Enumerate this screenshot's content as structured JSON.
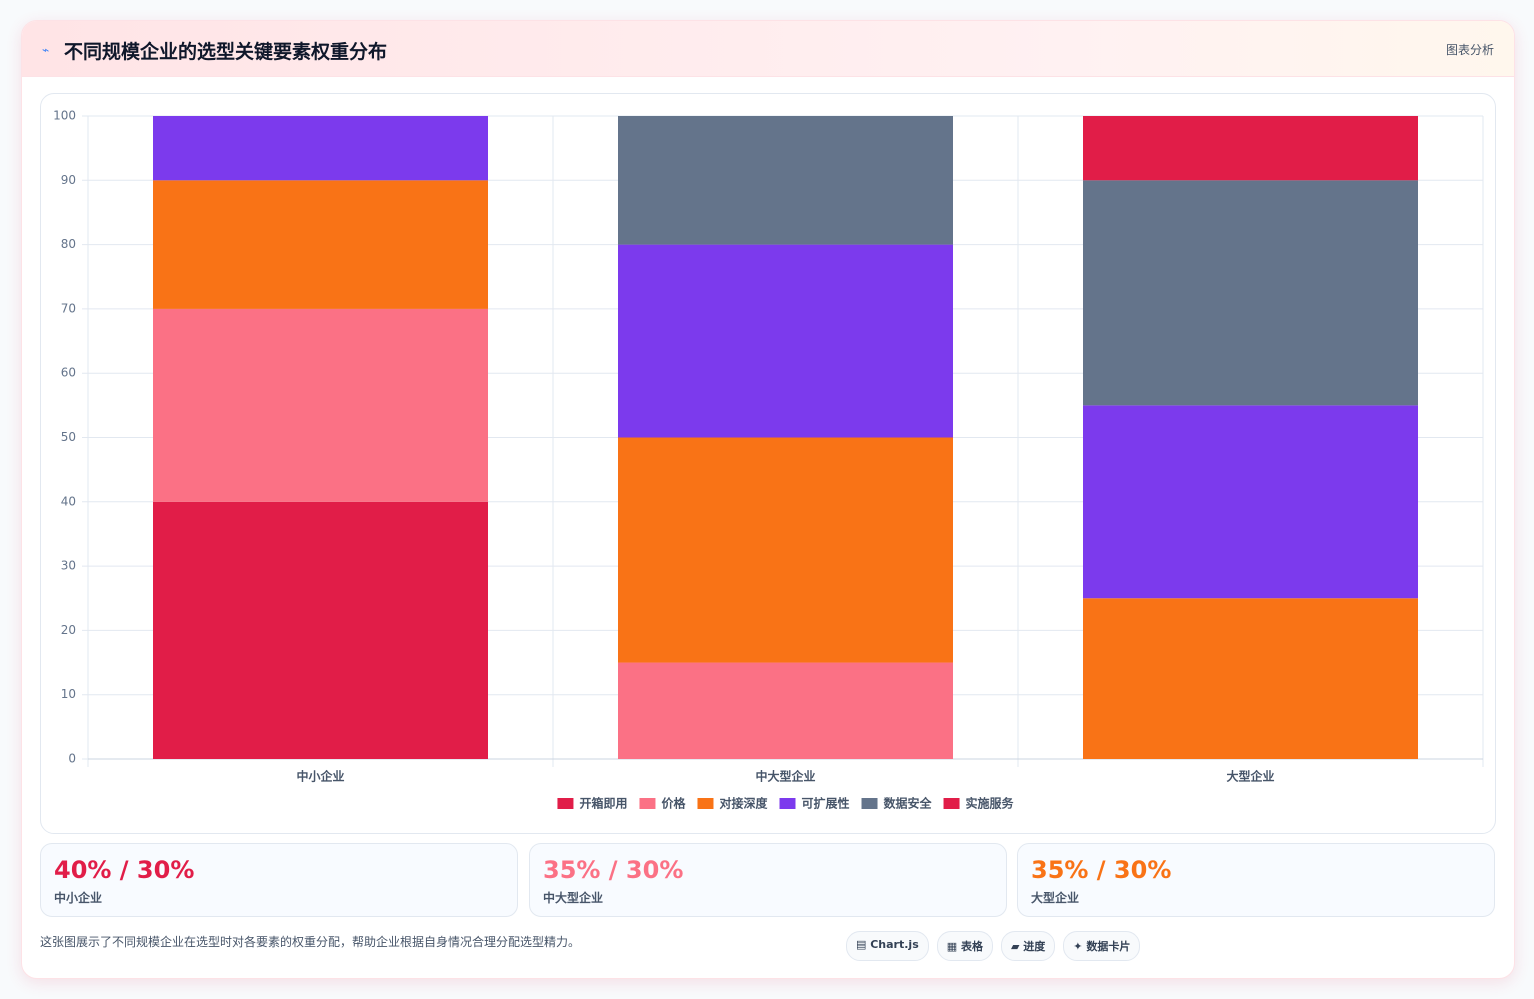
{
  "header": {
    "title": "不同规模企业的选型关键要素权重分布",
    "action": "图表分析"
  },
  "chart_data": {
    "type": "stacked_bar",
    "categories": [
      "中小企业",
      "中大型企业",
      "大型企业"
    ],
    "series": [
      {
        "name": "开箱即用",
        "color": "#e11d48",
        "values": [
          40,
          0,
          0
        ]
      },
      {
        "name": "价格",
        "color": "#fb7185",
        "values": [
          30,
          15,
          0
        ]
      },
      {
        "name": "对接深度",
        "color": "#f97316",
        "values": [
          20,
          35,
          25
        ]
      },
      {
        "name": "可扩展性",
        "color": "#7c3aed",
        "values": [
          10,
          30,
          30
        ]
      },
      {
        "name": "数据安全",
        "color": "#64748b",
        "values": [
          0,
          20,
          35
        ]
      },
      {
        "name": "实施服务",
        "color": "#e11d48",
        "values": [
          0,
          0,
          10
        ]
      }
    ],
    "ylim": [
      0,
      100
    ],
    "yticks": [
      0,
      10,
      20,
      30,
      40,
      50,
      60,
      70,
      80,
      90,
      100
    ],
    "grid": true,
    "legend": "bottom"
  },
  "cards": [
    {
      "value": "40% / 30%",
      "label": "中小企业",
      "color": "#e11d48"
    },
    {
      "value": "35% / 30%",
      "label": "中大型企业",
      "color": "#fb7185"
    },
    {
      "value": "35% / 30%",
      "label": "大型企业",
      "color": "#f97316"
    }
  ],
  "footer": {
    "text": "这张图展示了不同规模企业在选型时对各要素的权重分配，帮助企业根据自身情况合理分配选型精力。",
    "tags": [
      "Chart.js",
      "表格",
      "进度",
      "数据卡片"
    ]
  }
}
